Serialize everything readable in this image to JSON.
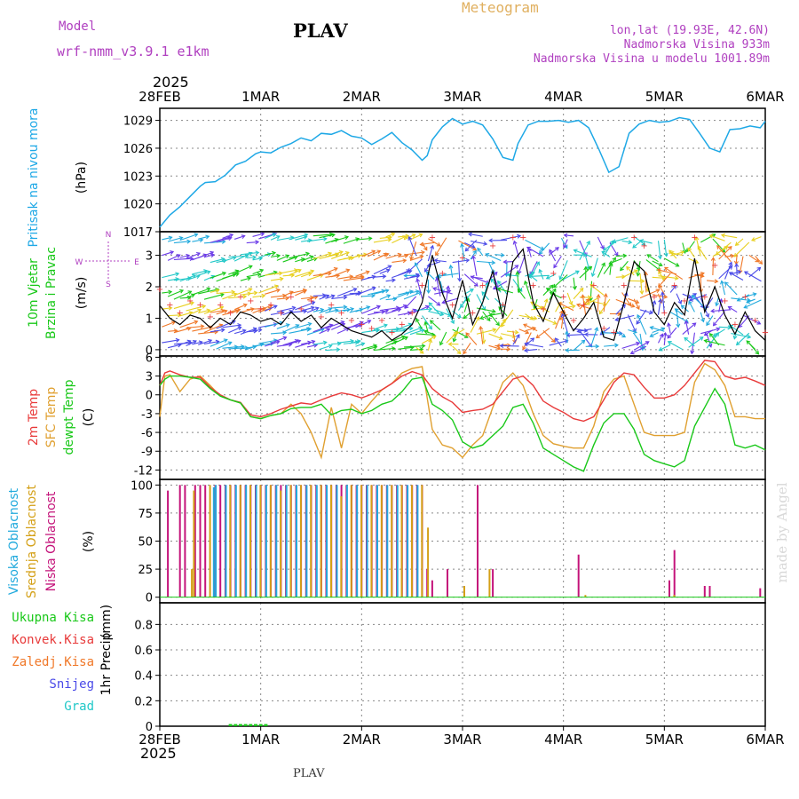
{
  "header": {
    "model_label": "Model",
    "model_name": "wrf-nmm_v3.9.1 e1km",
    "station": "PLAV",
    "product": "Meteogram",
    "lonlat": "lon,lat (19.93E, 42.6N)",
    "altitude": "Nadmorska Visina 933m",
    "model_altitude": "Nadmorska Visina u modelu 1001.89m"
  },
  "footer": {
    "station": "PLAV",
    "credit": "made by Angel"
  },
  "colors": {
    "pressure": "#1ea8e6",
    "temp2m": "#e83a3a",
    "sfc": "#e0a030",
    "dewpt": "#19c819",
    "high_cloud": "#22aadd",
    "mid_cloud": "#d4a017",
    "low_cloud": "#c4137a",
    "total_precip": "#19c819",
    "convective": "#e83a3a",
    "freezing": "#f07828",
    "snow": "#4a4ae8",
    "hail": "#22c8c8",
    "grid": "#888888",
    "label_purple": "#b040c0",
    "meteogram_label": "#e0b060"
  },
  "time_axis": {
    "year": "2025",
    "ticks": [
      "28FEB",
      "1MAR",
      "2MAR",
      "3MAR",
      "4MAR",
      "5MAR",
      "6MAR"
    ]
  },
  "chart_data": [
    {
      "type": "line",
      "ylabel_name": "Pritisak na nivou mora",
      "ylabel_unit": "(hPa)",
      "yticks": [
        "1017",
        "1020",
        "1023",
        "1026",
        "1029"
      ],
      "ylim": [
        1017,
        1030.3
      ],
      "x_range": [
        0,
        6
      ],
      "series": [
        {
          "x": [
            0,
            0.1,
            0.2,
            0.3,
            0.4,
            0.45,
            0.55,
            0.65,
            0.75,
            0.85,
            0.95,
            1.0,
            1.1,
            1.2,
            1.3,
            1.4,
            1.5,
            1.6,
            1.7,
            1.8,
            1.9,
            2.0,
            2.1,
            2.2,
            2.3,
            2.4,
            2.5,
            2.6,
            2.65,
            2.7,
            2.8,
            2.9,
            3.0,
            3.1,
            3.2,
            3.3,
            3.4,
            3.5,
            3.55,
            3.65,
            3.75,
            3.85,
            3.95,
            4.05,
            4.15,
            4.25,
            4.35,
            4.45,
            4.55,
            4.65,
            4.75,
            4.85,
            4.95,
            5.05,
            5.15,
            5.25,
            5.35,
            5.45,
            5.55,
            5.65,
            5.75,
            5.85,
            5.95,
            6.0
          ],
          "values": [
            1017.5,
            1018.8,
            1019.7,
            1020.8,
            1021.9,
            1022.3,
            1022.4,
            1023.1,
            1024.2,
            1024.6,
            1025.4,
            1025.6,
            1025.5,
            1026.1,
            1026.5,
            1027.1,
            1026.8,
            1027.6,
            1027.5,
            1027.9,
            1027.3,
            1027.1,
            1026.4,
            1027.0,
            1027.7,
            1026.6,
            1025.8,
            1024.7,
            1025.2,
            1026.9,
            1028.3,
            1029.2,
            1028.6,
            1028.9,
            1028.5,
            1027.0,
            1025.0,
            1024.7,
            1026.5,
            1028.5,
            1028.9,
            1028.9,
            1029.0,
            1028.8,
            1029.0,
            1028.2,
            1025.9,
            1023.4,
            1024.0,
            1027.6,
            1028.6,
            1029.0,
            1028.8,
            1028.9,
            1029.3,
            1029.1,
            1027.6,
            1026.0,
            1025.6,
            1028.0,
            1028.1,
            1028.4,
            1028.2,
            1028.9
          ]
        }
      ]
    },
    {
      "type": "line",
      "ylabel_name_1": "10m Vjetar",
      "ylabel_name_2": "Brzina i Pravac",
      "ylabel_unit": "(m/s)",
      "compass": {
        "n": "N",
        "s": "S",
        "e": "E",
        "w": "W"
      },
      "yticks": [
        "0",
        "1",
        "2",
        "3"
      ],
      "ylim": [
        -0.2,
        3.75
      ],
      "x_range": [
        0,
        6
      ],
      "series": [
        {
          "name": "speed",
          "x": [
            0,
            0.1,
            0.2,
            0.3,
            0.4,
            0.5,
            0.6,
            0.7,
            0.8,
            0.9,
            1.0,
            1.1,
            1.2,
            1.3,
            1.4,
            1.5,
            1.6,
            1.7,
            1.8,
            1.9,
            2.0,
            2.1,
            2.2,
            2.3,
            2.4,
            2.5,
            2.6,
            2.7,
            2.8,
            2.9,
            3.0,
            3.1,
            3.2,
            3.3,
            3.4,
            3.5,
            3.6,
            3.7,
            3.8,
            3.9,
            4.0,
            4.1,
            4.2,
            4.3,
            4.4,
            4.5,
            4.6,
            4.7,
            4.8,
            4.9,
            5.0,
            5.1,
            5.2,
            5.3,
            5.4,
            5.5,
            5.6,
            5.7,
            5.8,
            5.9,
            6.0
          ],
          "values": [
            1.4,
            1.0,
            0.8,
            1.1,
            1.0,
            0.7,
            1.0,
            0.8,
            1.2,
            1.1,
            0.9,
            1.0,
            0.8,
            1.2,
            0.9,
            1.1,
            0.7,
            1.0,
            0.8,
            0.6,
            0.5,
            0.4,
            0.6,
            0.3,
            0.5,
            0.8,
            1.5,
            3.0,
            1.8,
            1.0,
            2.2,
            0.8,
            1.5,
            2.5,
            1.0,
            2.8,
            3.2,
            1.5,
            0.9,
            1.8,
            1.2,
            0.6,
            1.0,
            1.5,
            0.4,
            0.3,
            1.5,
            2.8,
            2.5,
            1.2,
            0.8,
            1.5,
            1.1,
            2.9,
            1.2,
            2.0,
            1.1,
            0.5,
            1.2,
            0.6,
            0.3
          ]
        }
      ]
    },
    {
      "type": "line",
      "ylabel_2m": "2m Temp",
      "ylabel_sfc": "SFC Temp",
      "ylabel_dew": "dewpt Temp",
      "ylabel_unit": "(C)",
      "yticks": [
        "-12",
        "-9",
        "-6",
        "-3",
        "0",
        "3",
        "6"
      ],
      "ylim": [
        -13.5,
        6.2
      ],
      "x_range": [
        0,
        6
      ],
      "x": [
        0,
        0.05,
        0.1,
        0.2,
        0.3,
        0.4,
        0.5,
        0.6,
        0.7,
        0.8,
        0.9,
        1.0,
        1.1,
        1.2,
        1.3,
        1.4,
        1.5,
        1.6,
        1.7,
        1.8,
        1.9,
        2.0,
        2.1,
        2.2,
        2.3,
        2.4,
        2.5,
        2.6,
        2.7,
        2.8,
        2.9,
        3.0,
        3.1,
        3.2,
        3.3,
        3.4,
        3.5,
        3.6,
        3.7,
        3.8,
        3.9,
        4.0,
        4.1,
        4.2,
        4.3,
        4.4,
        4.5,
        4.6,
        4.7,
        4.8,
        4.9,
        5.0,
        5.1,
        5.2,
        5.3,
        5.4,
        5.5,
        5.6,
        5.7,
        5.8,
        5.9,
        6.0
      ],
      "series": [
        {
          "name": "2m",
          "values": [
            1.5,
            3.5,
            3.8,
            3.2,
            2.8,
            2.8,
            1.2,
            0.0,
            -0.8,
            -1.2,
            -3.2,
            -3.5,
            -3.0,
            -2.3,
            -1.8,
            -1.3,
            -1.5,
            -0.8,
            -0.2,
            0.3,
            0.0,
            -0.5,
            0.1,
            0.8,
            1.8,
            3.0,
            3.7,
            3.2,
            1.0,
            -0.3,
            -1.2,
            -2.8,
            -2.5,
            -2.3,
            -1.5,
            0.5,
            2.5,
            3.0,
            1.5,
            -1.0,
            -2.0,
            -2.8,
            -3.8,
            -4.2,
            -3.5,
            -0.8,
            2.0,
            3.5,
            3.2,
            1.2,
            -0.5,
            -0.5,
            0.0,
            1.5,
            3.5,
            5.5,
            5.3,
            3.0,
            2.5,
            2.8,
            2.2,
            1.5
          ]
        },
        {
          "name": "SFC",
          "values": [
            -3.5,
            3.0,
            3.2,
            0.5,
            2.5,
            3.0,
            1.5,
            -0.2,
            -0.8,
            -1.3,
            -3.5,
            -3.8,
            -3.3,
            -3.0,
            -1.5,
            -3.0,
            -6.0,
            -10.0,
            -2.0,
            -8.5,
            -1.5,
            -3.0,
            -1.0,
            0.8,
            1.8,
            3.5,
            4.2,
            4.5,
            -5.5,
            -8.0,
            -8.5,
            -10.0,
            -8.0,
            -6.5,
            -2.0,
            2.0,
            3.5,
            1.5,
            -3.0,
            -6.5,
            -7.8,
            -8.2,
            -8.5,
            -8.5,
            -5.0,
            0.5,
            2.5,
            3.0,
            -1.5,
            -6.0,
            -6.5,
            -6.5,
            -6.5,
            -6.0,
            2.0,
            5.0,
            4.0,
            1.5,
            -3.5,
            -3.5,
            -3.8,
            -3.8
          ]
        },
        {
          "name": "dewpt",
          "values": [
            1.5,
            2.5,
            3.0,
            3.0,
            2.8,
            2.5,
            1.0,
            -0.2,
            -0.8,
            -1.3,
            -3.5,
            -3.8,
            -3.3,
            -3.0,
            -2.2,
            -2.0,
            -2.0,
            -1.5,
            -3.2,
            -2.5,
            -2.3,
            -3.0,
            -2.5,
            -1.5,
            -1.0,
            0.5,
            2.5,
            2.8,
            -1.5,
            -2.5,
            -4.0,
            -7.5,
            -8.5,
            -8.0,
            -6.5,
            -5.0,
            -2.0,
            -1.5,
            -4.5,
            -8.5,
            -9.5,
            -10.5,
            -11.5,
            -12.2,
            -8.0,
            -4.5,
            -3.0,
            -3.0,
            -5.5,
            -9.5,
            -10.5,
            -11.0,
            -11.5,
            -10.5,
            -5.0,
            -2.0,
            1.0,
            -1.5,
            -8.0,
            -8.5,
            -8.0,
            -8.8
          ]
        }
      ]
    },
    {
      "type": "bar",
      "ylabel_high": "Visoka Oblacnost",
      "ylabel_mid": "Srednja Oblacnost",
      "ylabel_low": "Niska Oblacnost",
      "ylabel_unit": "(%)",
      "yticks": [
        "0",
        "25",
        "50",
        "75",
        "100"
      ],
      "ylim": [
        -5,
        105
      ],
      "x_range": [
        0,
        6
      ],
      "series": [
        {
          "name": "Niska",
          "x": [
            0.08,
            0.2,
            0.25,
            0.35,
            0.4,
            0.45,
            0.55,
            0.6,
            0.65,
            0.7,
            0.75,
            0.8,
            0.85,
            0.9,
            0.95,
            1.0,
            1.05,
            1.1,
            1.15,
            1.2,
            1.25,
            1.3,
            1.35,
            1.4,
            1.45,
            1.5,
            1.55,
            1.6,
            1.65,
            1.7,
            1.75,
            1.8,
            1.85,
            1.9,
            1.95,
            2.0,
            2.05,
            2.1,
            2.15,
            2.2,
            2.25,
            2.3,
            2.35,
            2.4,
            2.45,
            2.5,
            2.55,
            2.6,
            2.65,
            2.7,
            2.85,
            3.15,
            3.3,
            4.15,
            5.05,
            5.1,
            5.4,
            5.45,
            5.95
          ],
          "values": [
            95,
            100,
            100,
            100,
            100,
            100,
            100,
            100,
            100,
            100,
            100,
            100,
            100,
            100,
            100,
            100,
            100,
            100,
            100,
            100,
            100,
            100,
            100,
            100,
            100,
            100,
            100,
            100,
            100,
            100,
            100,
            100,
            100,
            100,
            100,
            100,
            100,
            100,
            100,
            100,
            100,
            100,
            100,
            100,
            100,
            100,
            100,
            100,
            25,
            15,
            25,
            100,
            25,
            38,
            15,
            42,
            10,
            10,
            8
          ]
        },
        {
          "name": "Srednja",
          "x": [
            0.3,
            0.32,
            0.48,
            0.68,
            0.78,
            0.88,
            0.98,
            1.08,
            1.18,
            1.28,
            1.38,
            1.48,
            1.58,
            1.68,
            1.78,
            1.88,
            1.98,
            2.08,
            2.18,
            2.28,
            2.38,
            2.48,
            2.58,
            2.64,
            3.0,
            3.25,
            4.2,
            5.08
          ],
          "values": [
            25,
            95,
            100,
            100,
            100,
            100,
            100,
            100,
            95,
            100,
            100,
            100,
            100,
            100,
            90,
            100,
            100,
            100,
            100,
            100,
            100,
            100,
            100,
            62,
            10,
            25,
            2,
            2
          ]
        },
        {
          "name": "Visoka",
          "x": [
            0.5,
            0.52,
            0.62,
            0.72,
            0.82,
            0.92,
            1.02,
            1.12,
            1.22,
            1.32,
            1.42,
            1.52,
            1.62,
            1.72,
            1.82,
            1.92,
            2.02,
            2.12,
            2.22,
            2.32,
            2.42,
            2.52
          ],
          "values": [
            98,
            100,
            100,
            100,
            100,
            100,
            100,
            100,
            100,
            100,
            100,
            100,
            100,
            100,
            100,
            100,
            100,
            100,
            100,
            100,
            100,
            100
          ]
        }
      ]
    },
    {
      "type": "bar",
      "ylabel_name": "1hr Precip",
      "ylabel_unit": "(mm)",
      "legend": [
        "Ukupna Kisa",
        "Konvek.Kisa",
        "Zaledj.Kisa",
        "Snijeg",
        "Grad"
      ],
      "yticks": [
        "0",
        "0.2",
        "0.4",
        "0.6",
        "0.8"
      ],
      "ylim": [
        0,
        0.97
      ],
      "x_range": [
        0,
        6
      ],
      "series": [
        {
          "name": "Ukupna Kisa",
          "x": [
            0.7,
            0.75,
            0.8,
            0.85,
            0.9,
            0.95,
            1.0,
            1.05
          ],
          "values": [
            0.01,
            0.01,
            0.01,
            0.01,
            0.01,
            0.01,
            0.01,
            0.01
          ]
        }
      ]
    }
  ]
}
